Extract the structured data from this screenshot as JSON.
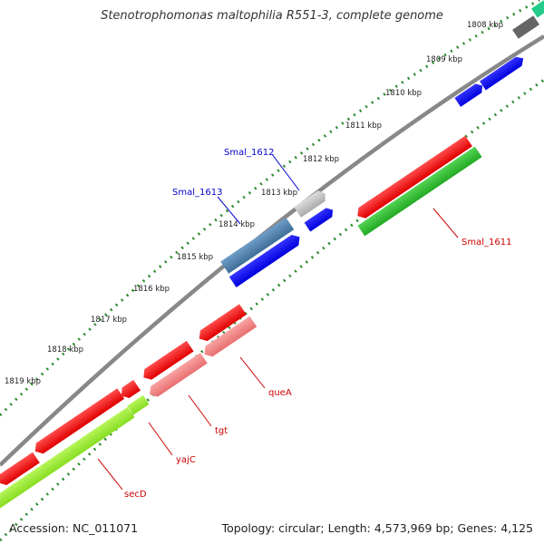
{
  "title": "Stenotrophomonas maltophilia R551-3, complete genome",
  "footer": {
    "accession": "Accession: NC_011071",
    "summary": "Topology: circular; Length: 4,573,969 bp; Genes: 4,125"
  },
  "kbp_labels": [
    "1808 kbp",
    "1809 kbp",
    "1810 kbp",
    "1811 kbp",
    "1812 kbp",
    "1813 kbp",
    "1814 kbp",
    "1815 kbp",
    "1816 kbp",
    "1817 kbp",
    "1818 kbp",
    "1819 kbp"
  ],
  "gene_labels": {
    "smal_1611": "Smal_1611",
    "smal_1612": "Smal_1612",
    "smal_1613": "Smal_1613",
    "queA": "queA",
    "tgt": "tgt",
    "yajC": "yajC",
    "secD": "secD"
  },
  "colors": {
    "backbone": "#888888",
    "tick_marks": "#2e8b2e",
    "forward_cds": "#0000ee",
    "reverse_cds": "#ee0000",
    "rna_pink": "#f08080",
    "gene_green": "#33bb33",
    "gene_lime": "#99ee33",
    "label_blue": "#0000cc",
    "label_red": "#cc0000",
    "gray_feature": "#777777"
  }
}
